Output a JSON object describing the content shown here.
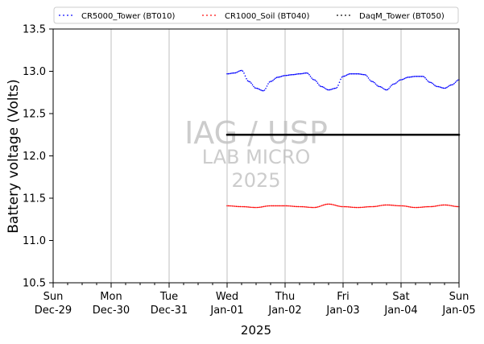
{
  "chart_data": {
    "type": "scatter",
    "title": "",
    "xlabel": "2025",
    "ylabel": "Battery voltage (Volts)",
    "ylim": [
      10.5,
      13.5
    ],
    "xlim": [
      "2024-12-29",
      "2025-01-05"
    ],
    "yticks": [
      10.5,
      11.0,
      11.5,
      12.0,
      12.5,
      13.0,
      13.5
    ],
    "x_tick_labels": [
      {
        "date": "2024-12-29",
        "day": "Sun",
        "label": "Dec-29"
      },
      {
        "date": "2024-12-30",
        "day": "Mon",
        "label": "Dec-30"
      },
      {
        "date": "2024-12-31",
        "day": "Tue",
        "label": "Dec-31"
      },
      {
        "date": "2025-01-01",
        "day": "Wed",
        "label": "Jan-01"
      },
      {
        "date": "2025-01-02",
        "day": "Thu",
        "label": "Jan-02"
      },
      {
        "date": "2025-01-03",
        "day": "Fri",
        "label": "Jan-03"
      },
      {
        "date": "2025-01-04",
        "day": "Sat",
        "label": "Jan-04"
      },
      {
        "date": "2025-01-05",
        "day": "Sun",
        "label": "Jan-05"
      }
    ],
    "grid": "vertical-major",
    "legend_position": "top",
    "watermark": [
      "IAG / USP",
      "LAB MICRO",
      "2025"
    ],
    "series": [
      {
        "name": "CR5000_Tower (BT010)",
        "color": "#0000ff",
        "style": "dotted",
        "points": [
          [
            "2025-01-01 00:00",
            12.97
          ],
          [
            "2025-01-01 03:00",
            12.98
          ],
          [
            "2025-01-01 06:00",
            13.01
          ],
          [
            "2025-01-01 09:00",
            12.88
          ],
          [
            "2025-01-01 12:00",
            12.8
          ],
          [
            "2025-01-01 15:00",
            12.77
          ],
          [
            "2025-01-01 18:00",
            12.88
          ],
          [
            "2025-01-01 21:00",
            12.93
          ],
          [
            "2025-01-02 00:00",
            12.95
          ],
          [
            "2025-01-02 03:00",
            12.96
          ],
          [
            "2025-01-02 06:00",
            12.97
          ],
          [
            "2025-01-02 09:00",
            12.98
          ],
          [
            "2025-01-02 12:00",
            12.9
          ],
          [
            "2025-01-02 15:00",
            12.82
          ],
          [
            "2025-01-02 18:00",
            12.78
          ],
          [
            "2025-01-02 21:00",
            12.8
          ],
          [
            "2025-01-03 00:00",
            12.94
          ],
          [
            "2025-01-03 03:00",
            12.97
          ],
          [
            "2025-01-03 06:00",
            12.97
          ],
          [
            "2025-01-03 09:00",
            12.96
          ],
          [
            "2025-01-03 12:00",
            12.88
          ],
          [
            "2025-01-03 15:00",
            12.82
          ],
          [
            "2025-01-03 18:00",
            12.78
          ],
          [
            "2025-01-03 21:00",
            12.85
          ],
          [
            "2025-01-04 00:00",
            12.9
          ],
          [
            "2025-01-04 03:00",
            12.93
          ],
          [
            "2025-01-04 06:00",
            12.94
          ],
          [
            "2025-01-04 09:00",
            12.94
          ],
          [
            "2025-01-04 12:00",
            12.87
          ],
          [
            "2025-01-04 15:00",
            12.82
          ],
          [
            "2025-01-04 18:00",
            12.8
          ],
          [
            "2025-01-04 21:00",
            12.84
          ],
          [
            "2025-01-05 00:00",
            12.9
          ]
        ]
      },
      {
        "name": "CR1000_Soil (BT040)",
        "color": "#ff0000",
        "style": "dotted",
        "points": [
          [
            "2025-01-01 00:00",
            11.41
          ],
          [
            "2025-01-01 06:00",
            11.4
          ],
          [
            "2025-01-01 12:00",
            11.39
          ],
          [
            "2025-01-01 18:00",
            11.41
          ],
          [
            "2025-01-02 00:00",
            11.41
          ],
          [
            "2025-01-02 06:00",
            11.4
          ],
          [
            "2025-01-02 12:00",
            11.39
          ],
          [
            "2025-01-02 18:00",
            11.43
          ],
          [
            "2025-01-03 00:00",
            11.4
          ],
          [
            "2025-01-03 06:00",
            11.39
          ],
          [
            "2025-01-03 12:00",
            11.4
          ],
          [
            "2025-01-03 18:00",
            11.42
          ],
          [
            "2025-01-04 00:00",
            11.41
          ],
          [
            "2025-01-04 06:00",
            11.39
          ],
          [
            "2025-01-04 12:00",
            11.4
          ],
          [
            "2025-01-04 18:00",
            11.42
          ],
          [
            "2025-01-05 00:00",
            11.4
          ]
        ]
      },
      {
        "name": "DaqM_Tower (BT050)",
        "color": "#000000",
        "style": "dotted",
        "points": [
          [
            "2025-01-01 00:00",
            12.25
          ],
          [
            "2025-01-02 00:00",
            12.25
          ],
          [
            "2025-01-03 00:00",
            12.25
          ],
          [
            "2025-01-04 00:00",
            12.25
          ],
          [
            "2025-01-05 00:00",
            12.25
          ]
        ]
      }
    ]
  }
}
